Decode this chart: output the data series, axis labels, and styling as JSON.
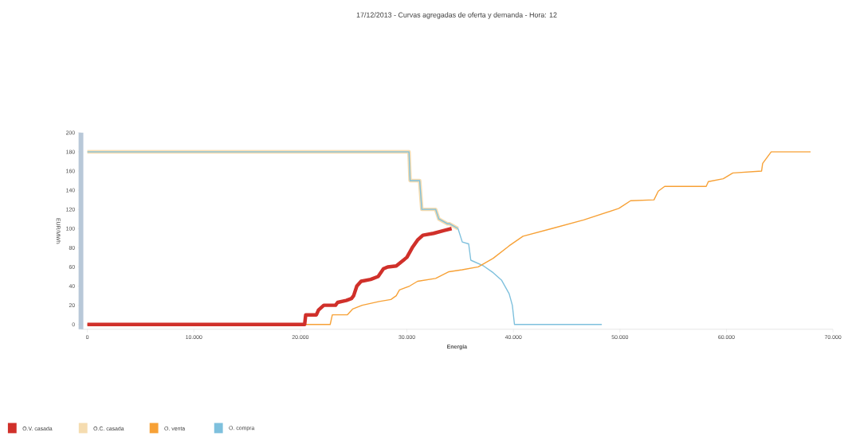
{
  "chart_data": {
    "type": "line",
    "title": "17/12/2013 - Curvas agregadas de oferta y demanda - Hora: 12",
    "xlabel": "Energía",
    "ylabel": "EUR/MWh",
    "xlim": [
      -600,
      70000
    ],
    "ylim": [
      -5,
      200
    ],
    "xticks": [
      0,
      {
        "value": 10000,
        "label": "10.000"
      },
      {
        "value": 20000,
        "label": "20.000"
      },
      {
        "value": 30000,
        "label": "30.000"
      },
      {
        "value": 40000,
        "label": "40.000"
      },
      {
        "value": 50000,
        "label": "50.000"
      },
      {
        "value": 60000,
        "label": "60.000"
      },
      {
        "value": 70000,
        "label": "70.000"
      }
    ],
    "yticks": [
      0,
      20,
      40,
      60,
      80,
      100,
      120,
      140,
      160,
      180,
      200
    ],
    "legend": "bottom left",
    "grid": false,
    "marker": "none",
    "line_style": "solid",
    "series": [
      {
        "name": "O.V. casada",
        "color": "#d0302a",
        "x": [
          0,
          20400,
          20500,
          21500,
          21700,
          22200,
          23300,
          23500,
          24300,
          24800,
          25000,
          25300,
          25700,
          26600,
          27300,
          27800,
          28200,
          29000,
          30000,
          30500,
          31000,
          31500,
          32500,
          33500,
          34200
        ],
        "values": [
          0,
          0,
          10,
          10,
          15,
          20,
          20,
          23,
          25,
          27,
          30,
          40,
          45,
          47,
          50,
          58,
          60,
          61,
          70,
          80,
          88,
          93,
          95,
          98,
          100
        ]
      },
      {
        "name": "O.C. casada",
        "color": "#f5dcb0",
        "x": [
          0,
          30200,
          30300,
          31200,
          31400,
          32700,
          33000,
          33800,
          34000,
          34800
        ],
        "values": [
          180,
          180,
          150,
          150,
          120,
          120,
          110,
          105,
          105,
          100
        ]
      },
      {
        "name": "O. venta",
        "color": "#f7a136",
        "x": [
          0,
          22800,
          23000,
          24400,
          24900,
          25800,
          27400,
          28500,
          29000,
          29300,
          30250,
          31000,
          32700,
          33950,
          35200,
          36700,
          38100,
          39600,
          40900,
          43600,
          46600,
          49900,
          51000,
          53200,
          53600,
          54200,
          58100,
          58300,
          59700,
          60600,
          63300,
          63400,
          64200,
          67900
        ],
        "values": [
          0,
          0,
          10,
          10,
          16,
          20,
          24,
          26,
          30,
          36,
          40,
          45,
          48,
          55,
          57,
          60,
          69,
          82,
          92,
          100,
          109,
          121,
          129,
          130,
          139,
          144,
          144,
          149,
          152,
          158,
          160,
          168,
          180,
          180
        ]
      },
      {
        "name": "O. compra",
        "color": "#7ec0dd",
        "x": [
          0,
          30200,
          30300,
          31200,
          31400,
          32700,
          33000,
          33800,
          34000,
          34800,
          35200,
          35800,
          36000,
          37200,
          38100,
          38900,
          39600,
          39900,
          40100,
          48300
        ],
        "values": [
          180,
          180,
          150,
          150,
          120,
          120,
          110,
          105,
          105,
          100,
          86,
          84,
          67,
          61,
          54,
          46,
          32,
          20,
          0,
          0
        ]
      }
    ]
  }
}
